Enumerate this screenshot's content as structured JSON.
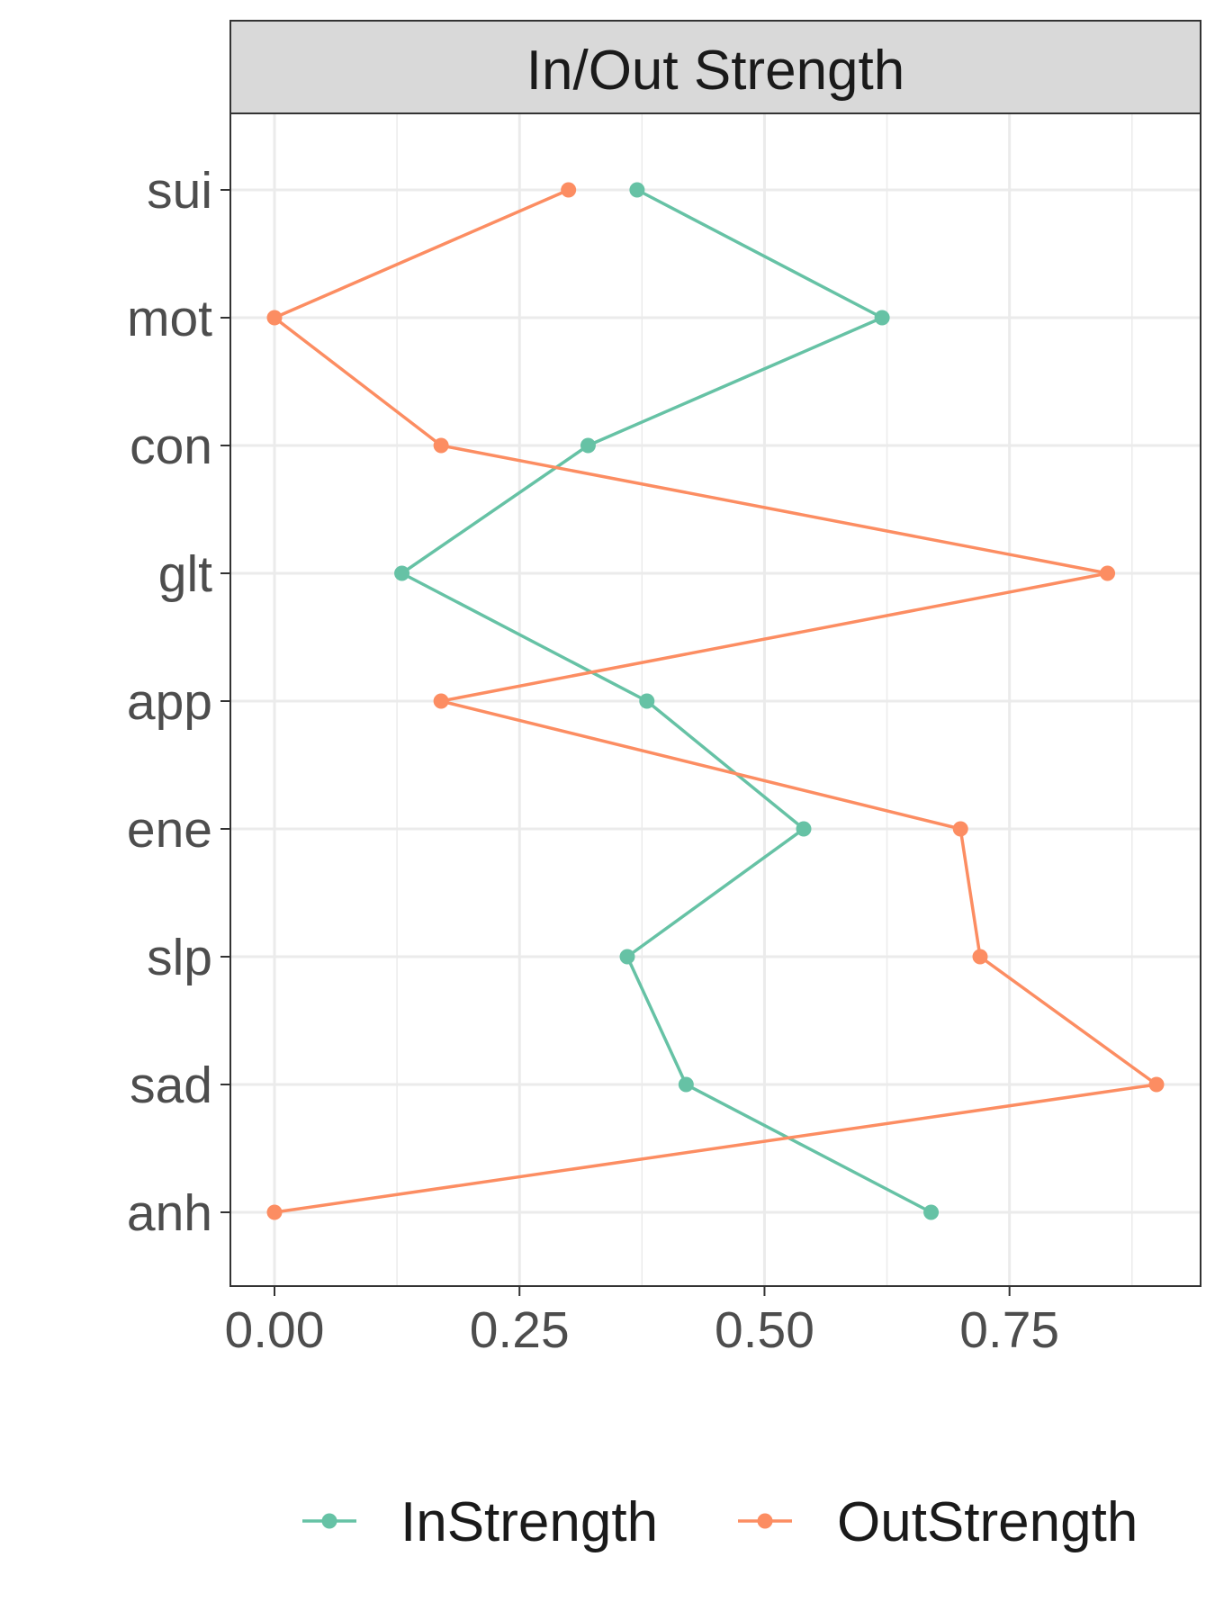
{
  "chart_data": {
    "type": "line",
    "facet_title": "In/Out Strength",
    "categories": [
      "sui",
      "mot",
      "con",
      "glt",
      "app",
      "ene",
      "slp",
      "sad",
      "anh"
    ],
    "series": [
      {
        "name": "InStrength",
        "color": "#66c2a5",
        "values": [
          0.37,
          0.62,
          0.32,
          0.13,
          0.38,
          0.54,
          0.36,
          0.42,
          0.67
        ]
      },
      {
        "name": "OutStrength",
        "color": "#fc8d62",
        "values": [
          0.3,
          0.0,
          0.17,
          0.85,
          0.17,
          0.7,
          0.72,
          0.9,
          0.0
        ]
      }
    ],
    "x_ticks": [
      "0.00",
      "0.25",
      "0.50",
      "0.75"
    ],
    "x_tick_values": [
      0,
      0.25,
      0.5,
      0.75
    ],
    "xlim": [
      -0.045,
      0.945
    ],
    "xlabel": "",
    "ylabel": "",
    "grid": true,
    "legend_position": "bottom"
  }
}
